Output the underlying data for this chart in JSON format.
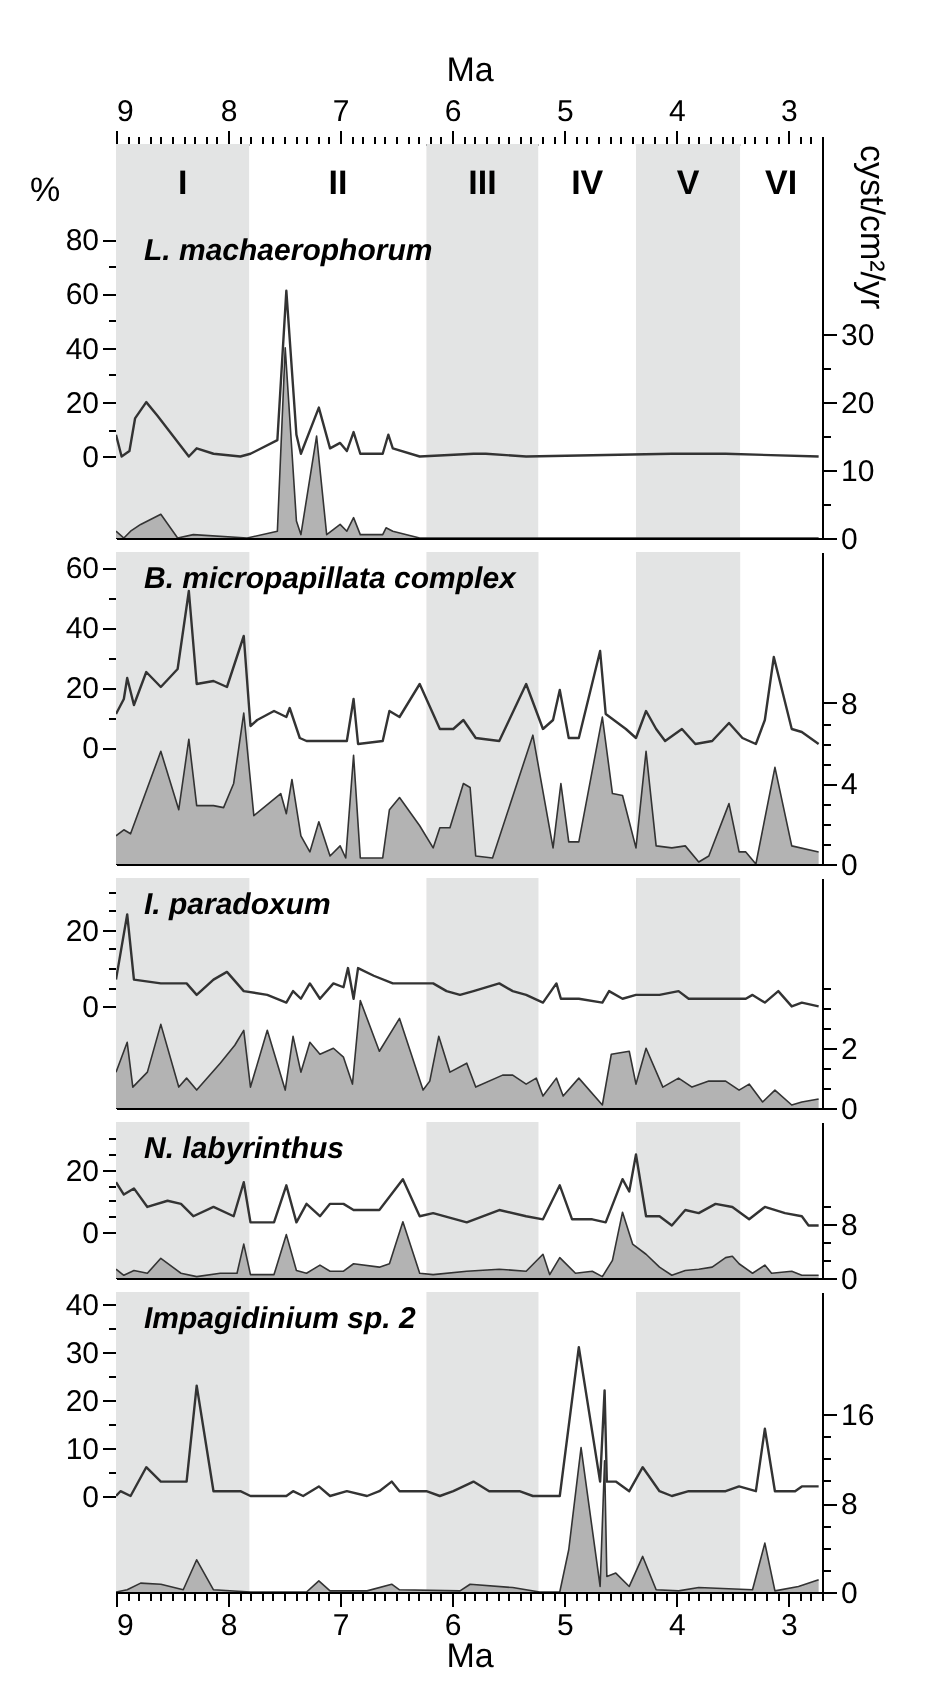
{
  "chart_data": [
    {
      "type": "line",
      "title": "L. machaerophorum",
      "ylabel": "%",
      "y2label": "cyst/cm²/yr",
      "xlabel": "Ma",
      "xlim": [
        9,
        2.7
      ],
      "xticks": [
        9,
        {
          "value": 8.9,
          "label": null
        },
        {
          "value": 8.8,
          "label": null
        },
        {
          "value": 8.7,
          "label": null
        },
        {
          "value": 8.6,
          "label": null
        },
        {
          "value": 8.5,
          "label": null
        },
        {
          "value": 8.4,
          "label": null
        },
        {
          "value": 8.3,
          "label": null
        },
        {
          "value": 8.2,
          "label": null
        },
        {
          "value": 8.1,
          "label": null
        },
        8,
        {
          "value": 7.9,
          "label": null
        },
        {
          "value": 7.8,
          "label": null
        },
        {
          "value": 7.7,
          "label": null
        },
        {
          "value": 7.6,
          "label": null
        },
        {
          "value": 7.5,
          "label": null
        },
        {
          "value": 7.4,
          "label": null
        },
        {
          "value": 7.3,
          "label": null
        },
        {
          "value": 7.2,
          "label": null
        },
        {
          "value": 7.1,
          "label": null
        },
        7,
        {
          "value": 6.9,
          "label": null
        },
        {
          "value": 6.8,
          "label": null
        },
        {
          "value": 6.7,
          "label": null
        },
        {
          "value": 6.6,
          "label": null
        },
        {
          "value": 6.5,
          "label": null
        },
        {
          "value": 6.4,
          "label": null
        },
        {
          "value": 6.3,
          "label": null
        },
        {
          "value": 6.2,
          "label": null
        },
        {
          "value": 6.1,
          "label": null
        },
        6,
        {
          "value": 5.9,
          "label": null
        },
        {
          "value": 5.8,
          "label": null
        },
        {
          "value": 5.7,
          "label": null
        },
        {
          "value": 5.6,
          "label": null
        },
        {
          "value": 5.5,
          "label": null
        },
        {
          "value": 5.4,
          "label": null
        },
        {
          "value": 5.3,
          "label": null
        },
        {
          "value": 5.2,
          "label": null
        },
        {
          "value": 5.1,
          "label": null
        },
        5,
        {
          "value": 4.9,
          "label": null
        },
        {
          "value": 4.8,
          "label": null
        },
        {
          "value": 4.7,
          "label": null
        },
        {
          "value": 4.6,
          "label": null
        },
        {
          "value": 4.5,
          "label": null
        },
        {
          "value": 4.4,
          "label": null
        },
        {
          "value": 4.3,
          "label": null
        },
        {
          "value": 4.2,
          "label": null
        },
        {
          "value": 4.1,
          "label": null
        },
        4,
        {
          "value": 3.9,
          "label": null
        },
        {
          "value": 3.8,
          "label": null
        },
        {
          "value": 3.7,
          "label": null
        },
        {
          "value": 3.6,
          "label": null
        },
        {
          "value": 3.5,
          "label": null
        },
        {
          "value": 3.4,
          "label": null
        },
        {
          "value": 3.3,
          "label": null
        },
        {
          "value": 3.2,
          "label": null
        },
        {
          "value": 3.1,
          "label": null
        },
        3,
        {
          "value": 2.9,
          "label": null
        },
        {
          "value": 2.8,
          "label": null
        },
        {
          "value": 2.7,
          "label": null
        }
      ],
      "ylim": [
        -30,
        115
      ],
      "yticks": [
        0,
        {
          "value": 10,
          "label": null
        },
        20,
        {
          "value": 30,
          "label": null
        },
        40,
        {
          "value": 50,
          "label": null
        },
        60,
        {
          "value": 70,
          "label": null
        },
        80
      ],
      "y2lim": [
        0,
        58
      ],
      "y2ticks": [
        0,
        {
          "value": 5,
          "label": null
        },
        10,
        {
          "value": 15,
          "label": null
        },
        20,
        {
          "value": 25,
          "label": null
        },
        30
      ],
      "bands": [
        {
          "axis": "x",
          "from": 9,
          "to": 7.81,
          "label": "I",
          "color": "#e3e4e4"
        },
        {
          "axis": "x",
          "from": 7.81,
          "to": 6.23,
          "label": "II",
          "color": "#ffffff"
        },
        {
          "axis": "x",
          "from": 6.23,
          "to": 5.23,
          "label": "III",
          "color": "#e3e4e4"
        },
        {
          "axis": "x",
          "from": 5.23,
          "to": 4.36,
          "label": "IV",
          "color": "#ffffff"
        },
        {
          "axis": "x",
          "from": 4.36,
          "to": 3.43,
          "label": "V",
          "color": "#e3e4e4"
        },
        {
          "axis": "x",
          "from": 3.43,
          "to": 2.7,
          "label": "VI",
          "color": "#ffffff"
        }
      ],
      "series": [
        {
          "type": "area",
          "axis": "y2",
          "color": "#b3b3b3",
          "x": [
            9.0,
            8.93,
            8.87,
            8.78,
            8.6,
            8.45,
            8.31,
            7.83,
            7.56,
            7.49,
            7.39,
            7.35,
            7.21,
            7.12,
            7.0,
            6.94,
            6.88,
            6.82,
            6.62,
            6.59,
            6.53,
            6.29,
            5.81,
            2.73
          ],
          "values": [
            1,
            0,
            1,
            2,
            3.5,
            0,
            0.5,
            0,
            1,
            28,
            2.5,
            0.5,
            15,
            0.5,
            2,
            1,
            3,
            0.5,
            0.5,
            1.5,
            1,
            0,
            0,
            0
          ]
        },
        {
          "type": "line",
          "color": "#333333",
          "x": [
            9.0,
            8.95,
            8.88,
            8.83,
            8.73,
            8.63,
            8.35,
            8.28,
            8.13,
            7.89,
            7.8,
            7.56,
            7.48,
            7.39,
            7.35,
            7.19,
            7.09,
            7.0,
            6.94,
            6.88,
            6.82,
            6.62,
            6.57,
            6.53,
            6.29,
            5.81,
            5.7,
            5.34,
            4.04,
            3.56,
            2.73
          ],
          "values": [
            8,
            0,
            2,
            14,
            20,
            15,
            0,
            3,
            1,
            0,
            1,
            6,
            61,
            8,
            1,
            18,
            3,
            5,
            2,
            9,
            1,
            1,
            8,
            3,
            0,
            1,
            1,
            0,
            1,
            1,
            0
          ]
        }
      ]
    },
    {
      "type": "line",
      "title": "B. micropapillata complex",
      "xlim": [
        9,
        2.7
      ],
      "tick_labels": "y",
      "ylim": [
        -39,
        65
      ],
      "yticks": [
        0,
        {
          "value": 10,
          "label": null
        },
        20,
        {
          "value": 30,
          "label": null
        },
        40,
        {
          "value": 50,
          "label": null
        },
        60
      ],
      "y2lim": [
        0,
        15.5
      ],
      "y2ticks": [
        0,
        {
          "value": 1,
          "label": null
        },
        {
          "value": 2,
          "label": null
        },
        {
          "value": 3,
          "label": null
        },
        4,
        {
          "value": 5,
          "label": null
        },
        {
          "value": 6,
          "label": null
        },
        {
          "value": 7,
          "label": null
        },
        8
      ],
      "bands": [
        {
          "axis": "x",
          "from": 9,
          "to": 7.81,
          "color": "#e3e4e4"
        },
        {
          "axis": "x",
          "from": 6.23,
          "to": 5.23,
          "color": "#e3e4e4"
        },
        {
          "axis": "x",
          "from": 4.36,
          "to": 3.43,
          "color": "#e3e4e4"
        }
      ],
      "series": [
        {
          "type": "area",
          "axis": "y2",
          "color": "#b3b3b3",
          "x": [
            9.0,
            8.93,
            8.87,
            8.6,
            8.44,
            8.35,
            8.28,
            8.13,
            8.04,
            7.95,
            7.86,
            7.77,
            7.53,
            7.48,
            7.43,
            7.35,
            7.27,
            7.19,
            7.09,
            7.0,
            6.95,
            6.88,
            6.82,
            6.62,
            6.56,
            6.47,
            6.29,
            6.17,
            6.11,
            6.02,
            5.9,
            5.84,
            5.79,
            5.64,
            5.28,
            5.1,
            5.03,
            4.96,
            4.87,
            4.66,
            4.57,
            4.48,
            4.36,
            4.27,
            4.18,
            4.04,
            3.92,
            3.8,
            3.71,
            3.53,
            3.44,
            3.38,
            3.29,
            3.12,
            2.97,
            2.73
          ],
          "values": [
            1.4,
            1.7,
            1.5,
            5.6,
            2.7,
            6.2,
            2.9,
            2.9,
            2.8,
            4.0,
            7.5,
            2.4,
            3.5,
            2.5,
            4.2,
            1.4,
            0.6,
            2.1,
            0.4,
            0.9,
            0.3,
            5.4,
            0.3,
            0.3,
            2.7,
            3.3,
            1.9,
            0.8,
            1.8,
            1.8,
            4.0,
            3.8,
            0.4,
            0.3,
            6.4,
            0.8,
            4.0,
            1.1,
            1.1,
            7.3,
            3.5,
            3.4,
            0.8,
            5.6,
            0.9,
            0.8,
            0.9,
            0.1,
            0.4,
            3.0,
            0.6,
            0.6,
            0,
            4.8,
            0.9,
            0.6
          ]
        },
        {
          "type": "line",
          "color": "#333333",
          "x": [
            9.0,
            8.93,
            8.9,
            8.84,
            8.73,
            8.6,
            8.45,
            8.35,
            8.28,
            8.13,
            8.01,
            7.86,
            7.8,
            7.74,
            7.59,
            7.48,
            7.45,
            7.36,
            7.3,
            6.94,
            6.88,
            6.84,
            6.62,
            6.56,
            6.47,
            6.29,
            6.11,
            5.99,
            5.9,
            5.79,
            5.58,
            5.34,
            5.19,
            5.1,
            5.04,
            4.96,
            4.87,
            4.68,
            4.63,
            4.45,
            4.36,
            4.27,
            4.18,
            4.1,
            3.95,
            3.83,
            3.68,
            3.53,
            3.41,
            3.29,
            3.21,
            3.13,
            2.97,
            2.88,
            2.73
          ],
          "values": [
            11,
            16,
            23,
            14,
            25,
            20,
            26,
            52,
            21,
            22,
            20,
            37,
            7,
            9,
            12,
            10,
            13,
            3,
            2,
            2,
            16,
            1,
            2,
            12,
            10,
            21,
            6,
            6,
            9,
            3,
            2,
            21,
            6,
            9,
            19,
            3,
            3,
            32,
            11,
            6,
            3,
            12,
            6,
            2,
            6,
            1,
            2,
            8,
            3,
            1,
            9,
            30,
            6,
            5,
            1
          ]
        }
      ]
    },
    {
      "type": "line",
      "title": "I. paradoxum",
      "xlim": [
        9,
        2.7
      ],
      "tick_labels": "y",
      "ylim": [
        -26.5,
        33.5
      ],
      "yticks": [
        0,
        {
          "value": 5,
          "label": null
        },
        {
          "value": 10,
          "label": null
        },
        {
          "value": 15,
          "label": null
        },
        20,
        {
          "value": 25,
          "label": null
        },
        {
          "value": 30,
          "label": null
        }
      ],
      "y2lim": [
        0,
        7.7
      ],
      "y2ticks": [
        0,
        {
          "value": 0.67,
          "label": null
        },
        {
          "value": 1.33,
          "label": null
        },
        2,
        {
          "value": 2.67,
          "label": null
        },
        {
          "value": 3.33,
          "label": null
        },
        {
          "value": 4,
          "label": null
        }
      ],
      "bands": [
        {
          "axis": "x",
          "from": 9,
          "to": 7.81,
          "color": "#e3e4e4"
        },
        {
          "axis": "x",
          "from": 6.23,
          "to": 5.23,
          "color": "#e3e4e4"
        },
        {
          "axis": "x",
          "from": 4.36,
          "to": 3.43,
          "color": "#e3e4e4"
        }
      ],
      "series": [
        {
          "type": "area",
          "axis": "y2",
          "color": "#b3b3b3",
          "x": [
            9.0,
            8.9,
            8.85,
            8.72,
            8.6,
            8.44,
            8.37,
            8.28,
            8.07,
            7.94,
            7.86,
            7.8,
            7.65,
            7.49,
            7.42,
            7.35,
            7.27,
            7.18,
            7.06,
            6.97,
            6.89,
            6.82,
            6.65,
            6.47,
            6.26,
            6.2,
            6.12,
            6.02,
            5.87,
            5.79,
            5.55,
            5.46,
            5.34,
            5.25,
            5.19,
            5.07,
            5.01,
            4.87,
            4.66,
            4.58,
            4.42,
            4.36,
            4.27,
            4.12,
            3.98,
            3.86,
            3.71,
            3.56,
            3.44,
            3.35,
            3.23,
            3.12,
            2.97,
            2.88,
            2.73
          ],
          "values": [
            1.2,
            2.2,
            0.7,
            1.2,
            2.8,
            0.7,
            1.0,
            0.6,
            1.5,
            2.1,
            2.6,
            0.7,
            2.6,
            0.6,
            2.4,
            1.2,
            2.2,
            1.8,
            2.0,
            1.7,
            0.8,
            3.6,
            1.9,
            3.0,
            0.6,
            0.9,
            2.4,
            1.2,
            1.5,
            0.7,
            1.1,
            1.1,
            0.8,
            1.0,
            0.4,
            1.0,
            0.4,
            1.0,
            0.1,
            1.8,
            1.9,
            0.8,
            2.0,
            0.7,
            1.0,
            0.7,
            0.9,
            0.9,
            0.6,
            0.8,
            0.2,
            0.6,
            0.1,
            0.2,
            0.3
          ]
        },
        {
          "type": "line",
          "color": "#333333",
          "x": [
            9.0,
            8.9,
            8.84,
            8.6,
            8.37,
            8.28,
            8.13,
            8.01,
            7.86,
            7.65,
            7.48,
            7.42,
            7.35,
            7.27,
            7.18,
            7.06,
            6.97,
            6.93,
            6.88,
            6.84,
            6.7,
            6.53,
            6.35,
            6.17,
            6.05,
            5.93,
            5.81,
            5.58,
            5.46,
            5.34,
            5.19,
            5.07,
            5.03,
            4.87,
            4.66,
            4.6,
            4.48,
            4.36,
            4.15,
            3.98,
            3.89,
            3.68,
            3.56,
            3.38,
            3.32,
            3.21,
            3.09,
            2.97,
            2.88,
            2.73
          ],
          "values": [
            7,
            24,
            7,
            6,
            6,
            3,
            7,
            9,
            4,
            3,
            1,
            4,
            2,
            6,
            2,
            6,
            5,
            10,
            2,
            10,
            8,
            6,
            6,
            6,
            4,
            3,
            4,
            6,
            4,
            3,
            1,
            6,
            2,
            2,
            1,
            4,
            2,
            3,
            3,
            4,
            2,
            2,
            2,
            2,
            3,
            1,
            4,
            0,
            1,
            0
          ]
        }
      ]
    },
    {
      "type": "line",
      "title": "N. labyrinthus",
      "xlim": [
        9,
        2.7
      ],
      "tick_labels": "y",
      "ylim": [
        -15,
        35.5
      ],
      "yticks": [
        0,
        {
          "value": 5,
          "label": null
        },
        {
          "value": 10,
          "label": null
        },
        {
          "value": 15,
          "label": null
        },
        20,
        {
          "value": 25,
          "label": null
        },
        {
          "value": 30,
          "label": null
        }
      ],
      "y2lim": [
        0,
        23
      ],
      "y2ticks": [
        0,
        {
          "value": 2.67,
          "label": null
        },
        {
          "value": 5.33,
          "label": null
        },
        8,
        {
          "value": 10.67,
          "label": null
        }
      ],
      "bands": [
        {
          "axis": "x",
          "from": 9,
          "to": 7.81,
          "color": "#e3e4e4"
        },
        {
          "axis": "x",
          "from": 6.23,
          "to": 5.23,
          "color": "#e3e4e4"
        },
        {
          "axis": "x",
          "from": 4.36,
          "to": 3.43,
          "color": "#e3e4e4"
        }
      ],
      "series": [
        {
          "type": "area",
          "axis": "y2",
          "color": "#b3b3b3",
          "x": [
            9.0,
            8.93,
            8.84,
            8.72,
            8.6,
            8.42,
            8.28,
            8.07,
            7.92,
            7.86,
            7.8,
            7.59,
            7.48,
            7.39,
            7.3,
            7.18,
            7.09,
            6.97,
            6.88,
            6.65,
            6.56,
            6.44,
            6.29,
            6.17,
            5.87,
            5.58,
            5.34,
            5.19,
            5.13,
            5.04,
            4.9,
            4.75,
            4.66,
            4.57,
            4.48,
            4.39,
            4.27,
            4.15,
            4.04,
            3.92,
            3.8,
            3.68,
            3.56,
            3.5,
            3.44,
            3.32,
            3.21,
            3.15,
            2.97,
            2.88,
            2.73
          ],
          "values": [
            1.3,
            0.4,
            1.1,
            0.7,
            2.9,
            0.7,
            0.2,
            0.7,
            0.7,
            5.0,
            0.5,
            0.5,
            6.4,
            1.1,
            0.7,
            1.9,
            1.0,
            1.0,
            2.1,
            1.6,
            2.1,
            8.3,
            0.7,
            0.5,
            1.0,
            1.3,
            1.0,
            3.5,
            0.5,
            3.0,
            0.7,
            1.0,
            0.2,
            2.6,
            9.7,
            5.0,
            3.5,
            1.6,
            0.4,
            1.1,
            1.3,
            1.6,
            3.0,
            3.2,
            2.1,
            0.7,
            1.9,
            0.7,
            1.0,
            0.4,
            0.4
          ]
        },
        {
          "type": "line",
          "color": "#333333",
          "x": [
            9.0,
            8.93,
            8.84,
            8.72,
            8.54,
            8.42,
            8.31,
            8.13,
            7.95,
            7.86,
            7.8,
            7.59,
            7.48,
            7.39,
            7.3,
            7.18,
            7.09,
            6.97,
            6.88,
            6.65,
            6.44,
            6.29,
            6.17,
            5.87,
            5.58,
            5.34,
            5.19,
            5.04,
            4.93,
            4.75,
            4.63,
            4.48,
            4.42,
            4.36,
            4.27,
            4.15,
            4.04,
            3.92,
            3.8,
            3.65,
            3.5,
            3.35,
            3.21,
            3.03,
            2.88,
            2.82,
            2.73
          ],
          "values": [
            16,
            12,
            14,
            8,
            10,
            9,
            5,
            8,
            5,
            16,
            3,
            3,
            15,
            3,
            9,
            5,
            9,
            9,
            7,
            7,
            17,
            5,
            6,
            3,
            7,
            5,
            4,
            15,
            4,
            4,
            3,
            17,
            13,
            25,
            5,
            5,
            2,
            7,
            6,
            9,
            8,
            4,
            8,
            6,
            5,
            2,
            2
          ]
        }
      ]
    },
    {
      "type": "line",
      "title": "Impagidinium sp. 2",
      "xlabel": "Ma",
      "xlim": [
        9,
        2.7
      ],
      "xticks": [
        9,
        {
          "value": 8.9,
          "label": null
        },
        {
          "value": 8.8,
          "label": null
        },
        {
          "value": 8.7,
          "label": null
        },
        {
          "value": 8.6,
          "label": null
        },
        {
          "value": 8.5,
          "label": null
        },
        {
          "value": 8.4,
          "label": null
        },
        {
          "value": 8.3,
          "label": null
        },
        {
          "value": 8.2,
          "label": null
        },
        {
          "value": 8.1,
          "label": null
        },
        8,
        {
          "value": 7.9,
          "label": null
        },
        {
          "value": 7.8,
          "label": null
        },
        {
          "value": 7.7,
          "label": null
        },
        {
          "value": 7.6,
          "label": null
        },
        {
          "value": 7.5,
          "label": null
        },
        {
          "value": 7.4,
          "label": null
        },
        {
          "value": 7.3,
          "label": null
        },
        {
          "value": 7.2,
          "label": null
        },
        {
          "value": 7.1,
          "label": null
        },
        7,
        {
          "value": 6.9,
          "label": null
        },
        {
          "value": 6.8,
          "label": null
        },
        {
          "value": 6.7,
          "label": null
        },
        {
          "value": 6.6,
          "label": null
        },
        {
          "value": 6.5,
          "label": null
        },
        {
          "value": 6.4,
          "label": null
        },
        {
          "value": 6.3,
          "label": null
        },
        {
          "value": 6.2,
          "label": null
        },
        {
          "value": 6.1,
          "label": null
        },
        6,
        {
          "value": 5.9,
          "label": null
        },
        {
          "value": 5.8,
          "label": null
        },
        {
          "value": 5.7,
          "label": null
        },
        {
          "value": 5.6,
          "label": null
        },
        {
          "value": 5.5,
          "label": null
        },
        {
          "value": 5.4,
          "label": null
        },
        {
          "value": 5.3,
          "label": null
        },
        {
          "value": 5.2,
          "label": null
        },
        {
          "value": 5.1,
          "label": null
        },
        5,
        {
          "value": 4.9,
          "label": null
        },
        {
          "value": 4.8,
          "label": null
        },
        {
          "value": 4.7,
          "label": null
        },
        {
          "value": 4.6,
          "label": null
        },
        {
          "value": 4.5,
          "label": null
        },
        {
          "value": 4.4,
          "label": null
        },
        {
          "value": 4.3,
          "label": null
        },
        {
          "value": 4.2,
          "label": null
        },
        {
          "value": 4.1,
          "label": null
        },
        4,
        {
          "value": 3.9,
          "label": null
        },
        {
          "value": 3.8,
          "label": null
        },
        {
          "value": 3.7,
          "label": null
        },
        {
          "value": 3.6,
          "label": null
        },
        {
          "value": 3.5,
          "label": null
        },
        {
          "value": 3.4,
          "label": null
        },
        {
          "value": 3.3,
          "label": null
        },
        {
          "value": 3.2,
          "label": null
        },
        {
          "value": 3.1,
          "label": null
        },
        3,
        {
          "value": 2.9,
          "label": null
        },
        {
          "value": 2.8,
          "label": null
        },
        {
          "value": 2.7,
          "label": null
        }
      ],
      "ylim": [
        -20,
        42.5
      ],
      "yticks": [
        0,
        {
          "value": 5,
          "label": null
        },
        10,
        {
          "value": 15,
          "label": null
        },
        20,
        {
          "value": 25,
          "label": null
        },
        30,
        {
          "value": 35,
          "label": null
        },
        40
      ],
      "y2lim": [
        0,
        27
      ],
      "y2ticks": [
        0,
        {
          "value": 2,
          "label": null
        },
        {
          "value": 4,
          "label": null
        },
        {
          "value": 6,
          "label": null
        },
        8,
        {
          "value": 10,
          "label": null
        },
        {
          "value": 12,
          "label": null
        },
        {
          "value": 14,
          "label": null
        },
        16
      ],
      "bands": [
        {
          "axis": "x",
          "from": 9,
          "to": 7.81,
          "color": "#e3e4e4"
        },
        {
          "axis": "x",
          "from": 6.23,
          "to": 5.23,
          "color": "#e3e4e4"
        },
        {
          "axis": "x",
          "from": 4.36,
          "to": 3.43,
          "color": "#e3e4e4"
        }
      ],
      "series": [
        {
          "type": "area",
          "axis": "y2",
          "color": "#b3b3b3",
          "x": [
            9.0,
            8.9,
            8.78,
            8.6,
            8.4,
            8.28,
            8.13,
            7.8,
            7.3,
            7.19,
            7.09,
            6.76,
            6.54,
            6.47,
            5.93,
            5.84,
            5.46,
            5.22,
            5.04,
            4.96,
            4.85,
            4.68,
            4.64,
            4.62,
            4.54,
            4.42,
            4.3,
            4.18,
            3.98,
            3.8,
            3.32,
            3.21,
            3.12,
            2.91,
            2.73
          ],
          "values": [
            0,
            0.2,
            0.8,
            0.7,
            0.2,
            2.9,
            0.2,
            0,
            0,
            1.0,
            0.1,
            0.1,
            0.7,
            0.2,
            0.1,
            0.7,
            0.4,
            0,
            0,
            3.8,
            13,
            0.5,
            11.8,
            1.4,
            1.7,
            0.5,
            3.2,
            0.2,
            0.1,
            0.4,
            0.2,
            4.4,
            0.1,
            0.5,
            1.1
          ]
        },
        {
          "type": "line",
          "color": "#333333",
          "x": [
            9.0,
            8.96,
            8.87,
            8.73,
            8.6,
            8.37,
            8.28,
            8.13,
            7.89,
            7.8,
            7.48,
            7.42,
            7.33,
            7.19,
            7.09,
            6.94,
            6.76,
            6.65,
            6.54,
            6.47,
            6.23,
            6.11,
            5.99,
            5.81,
            5.67,
            5.52,
            5.4,
            5.28,
            5.04,
            4.87,
            4.68,
            4.64,
            4.62,
            4.54,
            4.42,
            4.3,
            4.15,
            4.04,
            3.89,
            3.71,
            3.56,
            3.44,
            3.29,
            3.21,
            3.12,
            2.94,
            2.88,
            2.73
          ],
          "values": [
            0,
            1,
            0,
            6,
            3,
            3,
            23,
            1,
            1,
            0,
            0,
            1,
            0,
            2,
            0,
            1,
            0,
            1,
            3,
            1,
            1,
            0,
            1,
            3,
            1,
            1,
            1,
            0,
            0,
            31,
            3,
            22,
            3,
            3,
            1,
            6,
            1,
            0,
            1,
            1,
            1,
            2,
            1,
            14,
            1,
            1,
            2,
            2
          ]
        }
      ]
    }
  ]
}
